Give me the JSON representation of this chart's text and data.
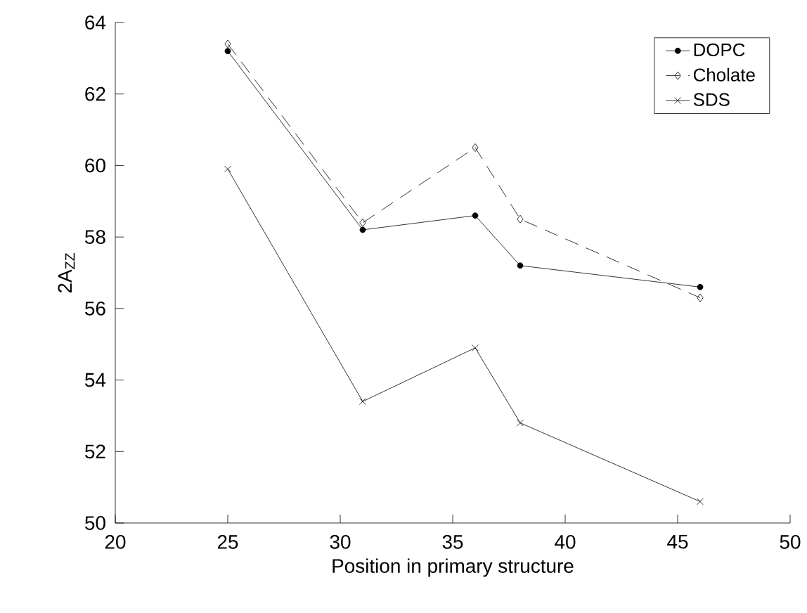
{
  "chart_data": {
    "type": "line",
    "xlabel": "Position in primary structure",
    "ylabel": "2A$_{ZZ}$",
    "x": [
      25,
      31,
      36,
      38,
      46
    ],
    "series": [
      {
        "name": "DOPC",
        "color": "#000000",
        "marker": "circle",
        "line_style": "solid",
        "values": [
          63.2,
          58.2,
          58.6,
          57.2,
          56.6
        ]
      },
      {
        "name": "Cholate",
        "color": "#000000",
        "marker": "diamond",
        "line_style": "dashed",
        "values": [
          63.4,
          58.4,
          60.5,
          58.5,
          56.3
        ]
      },
      {
        "name": "SDS",
        "color": "#000000",
        "marker": "cross",
        "line_style": "solid",
        "values": [
          59.9,
          53.4,
          54.9,
          52.8,
          50.6
        ]
      }
    ],
    "xlim": [
      20,
      50
    ],
    "xticks": [
      20,
      25,
      30,
      35,
      40,
      45,
      50
    ],
    "ylim": [
      50,
      64
    ],
    "yticks": [
      50,
      52,
      54,
      56,
      58,
      60,
      62,
      64
    ],
    "grid": false,
    "legend": "top right"
  }
}
